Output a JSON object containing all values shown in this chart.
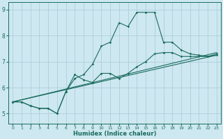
{
  "xlabel": "Humidex (Indice chaleur)",
  "bg_color": "#cde8f0",
  "grid_color": "#a8c8d8",
  "line_color": "#1a6b5e",
  "xlim": [
    -0.5,
    23.5
  ],
  "ylim": [
    4.6,
    9.3
  ],
  "xticks": [
    0,
    1,
    2,
    3,
    4,
    5,
    6,
    7,
    8,
    9,
    10,
    11,
    12,
    13,
    14,
    15,
    16,
    17,
    18,
    19,
    20,
    21,
    22,
    23
  ],
  "yticks": [
    5,
    6,
    7,
    8,
    9
  ],
  "line1_x": [
    0,
    1,
    2,
    3,
    4,
    5,
    6,
    7,
    8,
    9,
    10,
    11,
    12,
    13,
    14,
    15,
    16,
    17,
    18,
    19,
    20,
    21,
    22,
    23
  ],
  "line1_y": [
    5.45,
    5.45,
    5.3,
    5.2,
    5.2,
    5.0,
    5.85,
    6.35,
    6.5,
    6.9,
    7.6,
    7.75,
    8.5,
    8.35,
    8.9,
    8.9,
    8.9,
    7.75,
    7.75,
    7.45,
    7.3,
    7.25,
    7.2,
    7.3
  ],
  "line2_x": [
    0,
    1,
    2,
    3,
    4,
    5,
    6,
    7,
    8,
    9,
    10,
    11,
    12,
    13,
    14,
    15,
    16,
    17,
    18,
    19,
    20,
    21,
    22,
    23
  ],
  "line2_y": [
    5.45,
    5.45,
    5.3,
    5.2,
    5.2,
    5.0,
    5.85,
    6.5,
    6.3,
    6.2,
    6.55,
    6.55,
    6.35,
    6.55,
    6.8,
    7.0,
    7.3,
    7.35,
    7.35,
    7.2,
    7.2,
    7.2,
    7.2,
    7.25
  ],
  "line3_x": [
    0,
    23
  ],
  "line3_y": [
    5.45,
    7.35
  ],
  "line4_x": [
    0,
    23
  ],
  "line4_y": [
    5.45,
    7.25
  ]
}
